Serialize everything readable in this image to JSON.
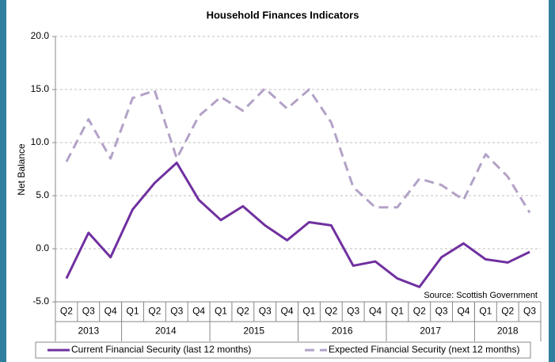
{
  "chart_data": {
    "type": "line",
    "title": "Household Finances Indicators",
    "y_label": "Net Balance",
    "annotation": "Source: Scottish Government",
    "categories": [
      "Q2",
      "Q3",
      "Q4",
      "Q1",
      "Q2",
      "Q3",
      "Q4",
      "Q1",
      "Q2",
      "Q3",
      "Q4",
      "Q1",
      "Q2",
      "Q3",
      "Q4",
      "Q1",
      "Q2",
      "Q3",
      "Q4",
      "Q1",
      "Q2",
      "Q3"
    ],
    "groups": [
      {
        "label": "2013",
        "size": 3
      },
      {
        "label": "2014",
        "size": 4
      },
      {
        "label": "2015",
        "size": 4
      },
      {
        "label": "2016",
        "size": 4
      },
      {
        "label": "2017",
        "size": 4
      },
      {
        "label": "2018",
        "size": 3
      }
    ],
    "series": [
      {
        "name": "Current Financial Security (last 12 months)",
        "color": "#7030a0",
        "dashed": false,
        "values": [
          -2.8,
          1.5,
          -0.8,
          3.7,
          6.2,
          8.1,
          4.6,
          2.7,
          4.0,
          2.2,
          0.8,
          2.5,
          2.2,
          -1.6,
          -1.2,
          -2.8,
          -3.6,
          -0.8,
          0.5,
          -1.0,
          -1.3,
          -0.3
        ]
      },
      {
        "name": "Expected Financial Security (next 12 months)",
        "color": "#b3a2c7",
        "dashed": true,
        "values": [
          8.2,
          12.2,
          8.5,
          14.2,
          14.9,
          8.5,
          12.5,
          14.3,
          13.0,
          15.1,
          13.2,
          15.0,
          11.9,
          5.8,
          3.9,
          3.9,
          6.6,
          6.0,
          4.6,
          8.9,
          6.8,
          3.4
        ]
      }
    ],
    "ylim": [
      -5,
      20
    ],
    "yticks": [
      {
        "value": -5,
        "label": "-5.0"
      },
      {
        "value": 0,
        "label": "0.0"
      },
      {
        "value": 5,
        "label": "5.0"
      },
      {
        "value": 10,
        "label": "10.0"
      },
      {
        "value": 15,
        "label": "15.0"
      },
      {
        "value": 20,
        "label": "20.0"
      }
    ],
    "grid": true
  }
}
